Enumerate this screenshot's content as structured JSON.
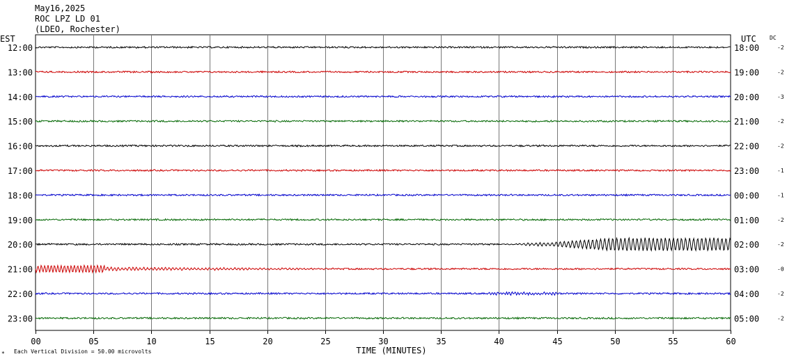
{
  "header": {
    "date": "May16,2025",
    "station": "ROC LPZ LD 01",
    "network": "(LDEO, Rochester)"
  },
  "chart_data": {
    "type": "line",
    "left_timezone_label": "EST",
    "right_timezone_label": "UTC",
    "dc_label": "DC",
    "xlabel": "TIME (MINUTES)",
    "x_ticks": [
      "00",
      "05",
      "10",
      "15",
      "20",
      "25",
      "30",
      "35",
      "40",
      "45",
      "50",
      "55",
      "60"
    ],
    "xlim": [
      0,
      60
    ],
    "scale_note": "Each Vertical Division =   50.00 microvolts",
    "trace_colors": [
      "#000000",
      "#cc0000",
      "#0000cc",
      "#006600"
    ],
    "rows": [
      {
        "est": "12:00",
        "utc": "18:00",
        "dc": "-2"
      },
      {
        "est": "13:00",
        "utc": "19:00",
        "dc": "-2"
      },
      {
        "est": "14:00",
        "utc": "20:00",
        "dc": "-3"
      },
      {
        "est": "15:00",
        "utc": "21:00",
        "dc": "-2"
      },
      {
        "est": "16:00",
        "utc": "22:00",
        "dc": "-2"
      },
      {
        "est": "17:00",
        "utc": "23:00",
        "dc": "-1"
      },
      {
        "est": "18:00",
        "utc": "00:00",
        "dc": "-1"
      },
      {
        "est": "19:00",
        "utc": "01:00",
        "dc": "-2"
      },
      {
        "est": "20:00",
        "utc": "02:00",
        "dc": "-2"
      },
      {
        "est": "21:00",
        "utc": "03:00",
        "dc": "-0"
      },
      {
        "est": "22:00",
        "utc": "04:00",
        "dc": "-2"
      },
      {
        "est": "23:00",
        "utc": "05:00",
        "dc": "-2"
      }
    ]
  }
}
